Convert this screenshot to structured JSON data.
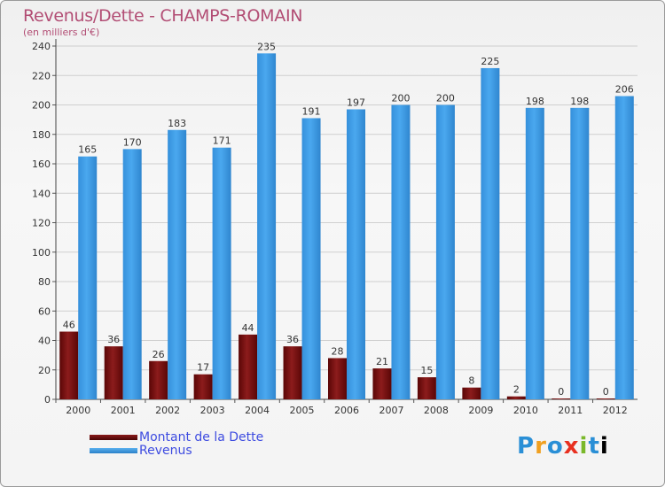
{
  "header": {
    "title": "Revenus/Dette - CHAMPS-ROMAIN",
    "subtitle": "(en milliers d'€)"
  },
  "logo": {
    "letters": [
      "P",
      "r",
      "o",
      "x",
      "i",
      "t",
      "i"
    ]
  },
  "colors": {
    "debt": "#6e0b0b",
    "revenue": "#3a98e2",
    "axis_text": "#333333",
    "grid": "#cfcfcf"
  },
  "chart_data": {
    "type": "bar",
    "title": "Revenus/Dette - CHAMPS-ROMAIN",
    "subtitle": "(en milliers d'€)",
    "categories": [
      "2000",
      "2001",
      "2002",
      "2003",
      "2004",
      "2005",
      "2006",
      "2007",
      "2008",
      "2009",
      "2010",
      "2011",
      "2012"
    ],
    "series": [
      {
        "name": "Montant de la Dette",
        "values": [
          46,
          36,
          26,
          17,
          44,
          36,
          28,
          21,
          15,
          8,
          2,
          0,
          0
        ]
      },
      {
        "name": "Revenus",
        "values": [
          165,
          170,
          183,
          171,
          235,
          191,
          197,
          200,
          200,
          225,
          198,
          198,
          206
        ]
      }
    ],
    "ylim": [
      0,
      240
    ],
    "yticks": [
      0,
      20,
      40,
      60,
      80,
      100,
      120,
      140,
      160,
      180,
      200,
      220,
      240
    ],
    "grid": true,
    "legend_position": "bottom-left"
  }
}
